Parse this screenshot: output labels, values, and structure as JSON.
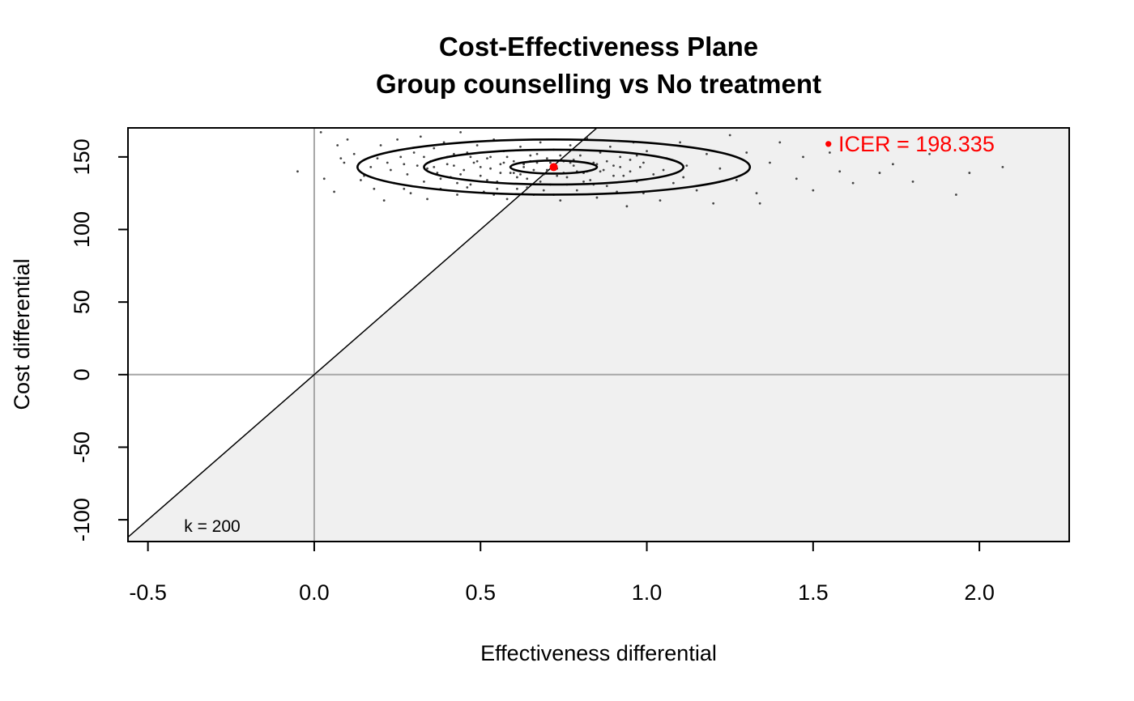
{
  "chart_data": {
    "type": "scatter",
    "title": "Cost-Effectiveness Plane",
    "subtitle": "Group counselling vs No treatment",
    "xlabel": "Effectiveness differential",
    "ylabel": "Cost differential",
    "xlim": [
      -0.56,
      2.27
    ],
    "ylim": [
      -115,
      170
    ],
    "xticks": [
      -0.5,
      0.0,
      0.5,
      1.0,
      1.5,
      2.0
    ],
    "xtick_labels": [
      "-0.5",
      "0.0",
      "0.5",
      "1.0",
      "1.5",
      "2.0"
    ],
    "yticks": [
      -100,
      -50,
      0,
      50,
      100,
      150
    ],
    "ytick_labels": [
      "-100",
      "-50",
      "0",
      "50",
      "100",
      "150"
    ],
    "wtp": 200,
    "wtp_label": "k = 200",
    "icer": {
      "x": 0.72,
      "y": 143,
      "label": "• ICER = 198.335",
      "color": "#ff0000"
    },
    "contours": [
      {
        "cx": 0.72,
        "cy": 143,
        "rx": 0.13,
        "ry": 4.5
      },
      {
        "cx": 0.72,
        "cy": 143,
        "rx": 0.39,
        "ry": 12
      },
      {
        "cx": 0.72,
        "cy": 143,
        "rx": 0.59,
        "ry": 19
      }
    ],
    "points": [
      [
        -0.05,
        140
      ],
      [
        0.02,
        167
      ],
      [
        0.03,
        135
      ],
      [
        0.07,
        158
      ],
      [
        0.06,
        126
      ],
      [
        0.09,
        146
      ],
      [
        0.12,
        152
      ],
      [
        0.1,
        162
      ],
      [
        0.15,
        137
      ],
      [
        0.18,
        128
      ],
      [
        0.2,
        158
      ],
      [
        0.22,
        146
      ],
      [
        0.21,
        120
      ],
      [
        0.24,
        132
      ],
      [
        0.25,
        162
      ],
      [
        0.26,
        150
      ],
      [
        0.28,
        138
      ],
      [
        0.29,
        125
      ],
      [
        0.3,
        153
      ],
      [
        0.31,
        144
      ],
      [
        0.32,
        164
      ],
      [
        0.33,
        133
      ],
      [
        0.34,
        121
      ],
      [
        0.35,
        147
      ],
      [
        0.36,
        156
      ],
      [
        0.37,
        139
      ],
      [
        0.38,
        128
      ],
      [
        0.39,
        160
      ],
      [
        0.4,
        150
      ],
      [
        0.41,
        136
      ],
      [
        0.42,
        144
      ],
      [
        0.43,
        124
      ],
      [
        0.44,
        167
      ],
      [
        0.45,
        141
      ],
      [
        0.46,
        153
      ],
      [
        0.47,
        131
      ],
      [
        0.48,
        146
      ],
      [
        0.49,
        158
      ],
      [
        0.5,
        137
      ],
      [
        0.51,
        126
      ],
      [
        0.52,
        149
      ],
      [
        0.53,
        142
      ],
      [
        0.54,
        162
      ],
      [
        0.55,
        133
      ],
      [
        0.56,
        145
      ],
      [
        0.57,
        154
      ],
      [
        0.58,
        121
      ],
      [
        0.59,
        139
      ],
      [
        0.6,
        147
      ],
      [
        0.61,
        128
      ],
      [
        0.62,
        157
      ],
      [
        0.63,
        143
      ],
      [
        0.64,
        135
      ],
      [
        0.65,
        151
      ],
      [
        0.66,
        124
      ],
      [
        0.67,
        146
      ],
      [
        0.68,
        160
      ],
      [
        0.69,
        138
      ],
      [
        0.7,
        149
      ],
      [
        0.71,
        131
      ],
      [
        0.72,
        155
      ],
      [
        0.73,
        142
      ],
      [
        0.74,
        120
      ],
      [
        0.75,
        147
      ],
      [
        0.76,
        136
      ],
      [
        0.77,
        158
      ],
      [
        0.78,
        144
      ],
      [
        0.79,
        127
      ],
      [
        0.8,
        151
      ],
      [
        0.81,
        139
      ],
      [
        0.82,
        163
      ],
      [
        0.83,
        134
      ],
      [
        0.84,
        146
      ],
      [
        0.85,
        122
      ],
      [
        0.86,
        153
      ],
      [
        0.87,
        141
      ],
      [
        0.88,
        130
      ],
      [
        0.89,
        157
      ],
      [
        0.9,
        144
      ],
      [
        0.91,
        126
      ],
      [
        0.92,
        150
      ],
      [
        0.93,
        137
      ],
      [
        0.94,
        116
      ],
      [
        0.95,
        148
      ],
      [
        0.96,
        160
      ],
      [
        0.97,
        133
      ],
      [
        0.98,
        143
      ],
      [
        0.99,
        125
      ],
      [
        1.0,
        154
      ],
      [
        1.02,
        138
      ],
      [
        1.04,
        120
      ],
      [
        1.06,
        149
      ],
      [
        1.08,
        132
      ],
      [
        1.1,
        160
      ],
      [
        1.12,
        144
      ],
      [
        1.15,
        127
      ],
      [
        1.18,
        152
      ],
      [
        1.2,
        118
      ],
      [
        1.22,
        142
      ],
      [
        1.25,
        165
      ],
      [
        1.27,
        134
      ],
      [
        1.3,
        153
      ],
      [
        1.33,
        125
      ],
      [
        1.34,
        118
      ],
      [
        1.37,
        146
      ],
      [
        1.4,
        160
      ],
      [
        1.45,
        135
      ],
      [
        1.47,
        150
      ],
      [
        1.5,
        127
      ],
      [
        1.55,
        153
      ],
      [
        1.58,
        140
      ],
      [
        1.62,
        132
      ],
      [
        1.65,
        157
      ],
      [
        1.7,
        139
      ],
      [
        1.74,
        145
      ],
      [
        1.8,
        133
      ],
      [
        1.85,
        152
      ],
      [
        1.93,
        124
      ],
      [
        1.97,
        139
      ],
      [
        2.07,
        143
      ],
      [
        0.55,
        128
      ],
      [
        0.6,
        139
      ],
      [
        0.65,
        147
      ],
      [
        0.7,
        141
      ],
      [
        0.75,
        139
      ],
      [
        0.68,
        133
      ],
      [
        0.58,
        150
      ],
      [
        0.63,
        145
      ],
      [
        0.78,
        148
      ],
      [
        0.82,
        140
      ],
      [
        0.44,
        138
      ],
      [
        0.47,
        150
      ],
      [
        0.52,
        134
      ],
      [
        0.57,
        146
      ],
      [
        0.62,
        138
      ],
      [
        0.66,
        141
      ],
      [
        0.73,
        137
      ],
      [
        0.77,
        146
      ],
      [
        0.85,
        145
      ],
      [
        0.9,
        137
      ],
      [
        0.36,
        143
      ],
      [
        0.4,
        145
      ],
      [
        0.5,
        143
      ],
      [
        0.53,
        150
      ],
      [
        0.61,
        136
      ],
      [
        0.67,
        152
      ],
      [
        0.71,
        146
      ],
      [
        0.79,
        140
      ],
      [
        0.88,
        147
      ],
      [
        0.95,
        140
      ],
      [
        0.27,
        145
      ],
      [
        0.33,
        150
      ],
      [
        0.43,
        132
      ],
      [
        0.49,
        147
      ],
      [
        0.59,
        143
      ],
      [
        0.64,
        129
      ],
      [
        0.74,
        151
      ],
      [
        0.81,
        133
      ],
      [
        0.86,
        140
      ],
      [
        0.99,
        146
      ],
      [
        0.14,
        134
      ],
      [
        0.19,
        149
      ],
      [
        0.23,
        141
      ],
      [
        0.38,
        135
      ],
      [
        0.46,
        129
      ],
      [
        0.56,
        139
      ],
      [
        0.69,
        127
      ],
      [
        0.76,
        131
      ],
      [
        0.92,
        143
      ],
      [
        1.05,
        141
      ],
      [
        0.08,
        149
      ],
      [
        0.17,
        143
      ],
      [
        0.27,
        128
      ],
      [
        0.34,
        142
      ],
      [
        0.42,
        152
      ],
      [
        0.54,
        124
      ],
      [
        0.72,
        124
      ],
      [
        0.84,
        131
      ],
      [
        0.97,
        151
      ],
      [
        1.11,
        136
      ]
    ]
  }
}
